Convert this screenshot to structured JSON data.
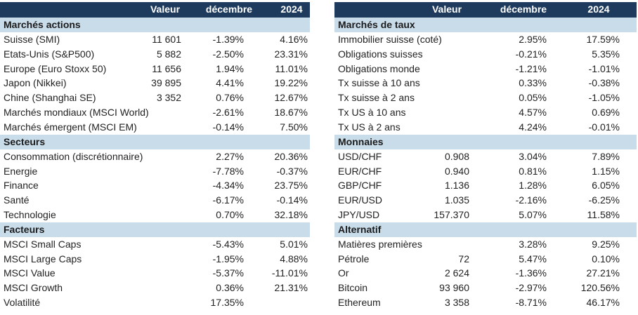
{
  "tables": [
    {
      "header": {
        "valeur": "Valeur",
        "decembre": "décembre",
        "annee": "2024"
      },
      "sections": [
        {
          "title": "Marchés actions",
          "rows": [
            {
              "label": "Suisse (SMI)",
              "valeur": "11 601",
              "decembre": "-1.39%",
              "annee": "4.16%"
            },
            {
              "label": "Etats-Unis (S&P500)",
              "valeur": "5 882",
              "decembre": "-2.50%",
              "annee": "23.31%"
            },
            {
              "label": "Europe (Euro Stoxx 50)",
              "valeur": "11 656",
              "decembre": "1.94%",
              "annee": "11.01%"
            },
            {
              "label": "Japon (Nikkei)",
              "valeur": "39 895",
              "decembre": "4.41%",
              "annee": "19.22%"
            },
            {
              "label": "Chine (Shanghai SE)",
              "valeur": "3 352",
              "decembre": "0.76%",
              "annee": "12.67%"
            },
            {
              "label": "Marchés mondiaux (MSCI World)",
              "decembre": "-2.61%",
              "annee": "18.67%"
            },
            {
              "label": "Marchés émergent (MSCI EM)",
              "decembre": "-0.14%",
              "annee": "7.50%"
            }
          ]
        },
        {
          "title": "Secteurs",
          "rows": [
            {
              "label": "Consommation (discrétionnaire)",
              "decembre": "2.27%",
              "annee": "20.36%"
            },
            {
              "label": "Energie",
              "decembre": "-7.78%",
              "annee": "-0.37%"
            },
            {
              "label": "Finance",
              "decembre": "-4.34%",
              "annee": "23.75%"
            },
            {
              "label": "Santé",
              "decembre": "-6.17%",
              "annee": "-0.14%"
            },
            {
              "label": "Technologie",
              "decembre": "0.70%",
              "annee": "32.18%"
            }
          ]
        },
        {
          "title": "Facteurs",
          "rows": [
            {
              "label": "MSCI Small Caps",
              "decembre": "-5.43%",
              "annee": "5.01%"
            },
            {
              "label": "MSCI Large Caps",
              "decembre": "-1.95%",
              "annee": "4.88%"
            },
            {
              "label": "MSCI Value",
              "decembre": "-5.37%",
              "annee": "-11.01%"
            },
            {
              "label": "MSCI Growth",
              "decembre": "0.36%",
              "annee": "21.31%"
            },
            {
              "label": "Volatilité",
              "decembre": "17.35%"
            }
          ]
        }
      ]
    },
    {
      "header": {
        "valeur": "Valeur",
        "decembre": "décembre",
        "annee": "2024"
      },
      "sections": [
        {
          "title": "Marchés de taux",
          "rows": [
            {
              "label": "Immobilier suisse (coté)",
              "decembre": "2.95%",
              "annee": "17.59%"
            },
            {
              "label": "Obligations suisses",
              "decembre": "-0.21%",
              "annee": "5.35%"
            },
            {
              "label": "Obligations monde",
              "decembre": "-1.21%",
              "annee": "-1.01%"
            },
            {
              "label": "Tx suisse à 10 ans",
              "decembre": "0.33%",
              "annee": "-0.38%"
            },
            {
              "label": "Tx suisse à 2 ans",
              "decembre": "0.05%",
              "annee": "-1.05%"
            },
            {
              "label": "Tx US à 10 ans",
              "decembre": "4.57%",
              "annee": "0.69%"
            },
            {
              "label": "Tx US à 2 ans",
              "decembre": "4.24%",
              "annee": "-0.01%"
            }
          ]
        },
        {
          "title": "Monnaies",
          "rows": [
            {
              "label": "USD/CHF",
              "valeur": "0.908",
              "decembre": "3.04%",
              "annee": "7.89%"
            },
            {
              "label": "EUR/CHF",
              "valeur": "0.940",
              "decembre": "0.81%",
              "annee": "1.15%"
            },
            {
              "label": "GBP/CHF",
              "valeur": "1.136",
              "decembre": "1.28%",
              "annee": "6.05%"
            },
            {
              "label": "EUR/USD",
              "valeur": "1.035",
              "decembre": "-2.16%",
              "annee": "-6.25%"
            },
            {
              "label": "JPY/USD",
              "valeur": "157.370",
              "decembre": "5.07%",
              "annee": "11.58%"
            }
          ]
        },
        {
          "title": "Alternatif",
          "rows": [
            {
              "label": "Matières premières",
              "decembre": "3.28%",
              "annee": "9.25%"
            },
            {
              "label": "Pétrole",
              "valeur": "72",
              "decembre": "5.47%",
              "annee": "0.10%"
            },
            {
              "label": "Or",
              "valeur": "2 624",
              "decembre": "-1.36%",
              "annee": "27.21%"
            },
            {
              "label": "Bitcoin",
              "valeur": "93 960",
              "decembre": "-2.97%",
              "annee": "120.56%"
            },
            {
              "label": "Ethereum",
              "valeur": "3 358",
              "decembre": "-8.71%",
              "annee": "46.17%"
            }
          ]
        }
      ]
    }
  ]
}
